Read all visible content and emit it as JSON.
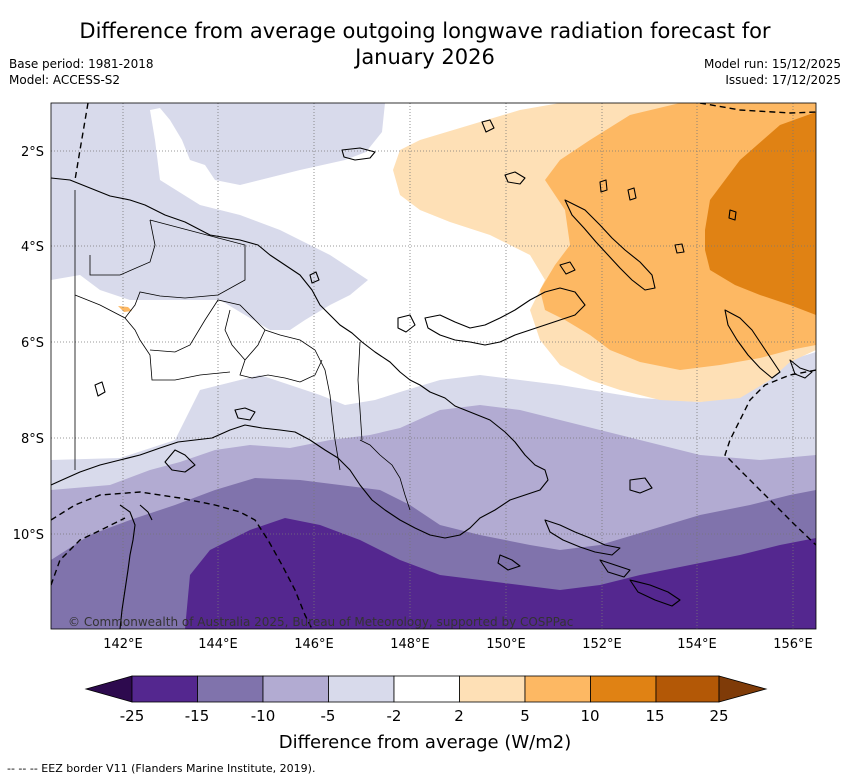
{
  "title": {
    "line1": "Difference from average outgoing longwave radiation forecast for",
    "line2": "January 2026"
  },
  "meta": {
    "base_period": "Base period: 1981-2018",
    "model": "Model: ACCESS-S2",
    "model_run": "Model run: 15/12/2025",
    "issued": "Issued: 17/12/2025"
  },
  "map": {
    "region": "Papua New Guinea",
    "lat_labels": [
      "2°S",
      "4°S",
      "6°S",
      "8°S",
      "10°S"
    ],
    "lon_labels": [
      "142°E",
      "144°E",
      "146°E",
      "148°E",
      "150°E",
      "152°E",
      "154°E",
      "156°E"
    ],
    "copyright": "© Commonwealth of Australia 2025, Bureau of Meteorology, supported by COSPPac"
  },
  "colorbar": {
    "title": "Difference from average (W/m2)",
    "ticks": [
      "-25",
      "-15",
      "-10",
      "-5",
      "-2",
      "2",
      "5",
      "10",
      "15",
      "25"
    ],
    "colors": {
      "under": "#2d0a4e",
      "b1": "#54278f",
      "b2": "#8073ac",
      "b3": "#b2abd2",
      "b4": "#d8daeb",
      "b5": "#ffffff",
      "b6": "#fee0b6",
      "b7": "#fdb863",
      "b8": "#e08214",
      "b9": "#b35806",
      "over": "#7f3b08"
    }
  },
  "footnote": "--  --  -- EEZ border V11 (Flanders Marine Institute, 2019)."
}
